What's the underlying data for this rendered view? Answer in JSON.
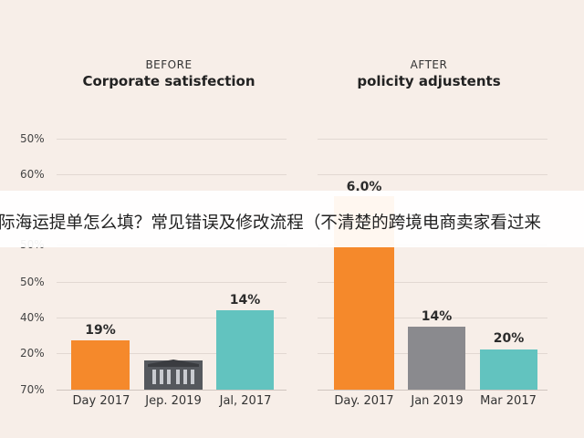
{
  "left_panel": {
    "kicker": "BEFORE",
    "title": "Corporate satisfection",
    "axis_labels": [
      "50%",
      "60%",
      "50%",
      "50%",
      "40%",
      "20%",
      "70%"
    ],
    "bars": [
      {
        "label": "19%",
        "category": "Day 2017"
      },
      {
        "category": "Jep. 2019"
      },
      {
        "label": "14%",
        "category": "Jal, 2017"
      }
    ]
  },
  "right_panel": {
    "kicker": "AFTER",
    "title": "policity adjustents",
    "bars": [
      {
        "label": "6.0%",
        "category": "Day. 2017"
      },
      {
        "label": "14%",
        "category": "Jan 2019"
      },
      {
        "label": "20%",
        "category": "Mar 2017"
      }
    ]
  },
  "banner": {
    "text": "际海运提单怎么填？常见错误及修改流程（不清楚的跨境电商卖家看过来"
  }
}
